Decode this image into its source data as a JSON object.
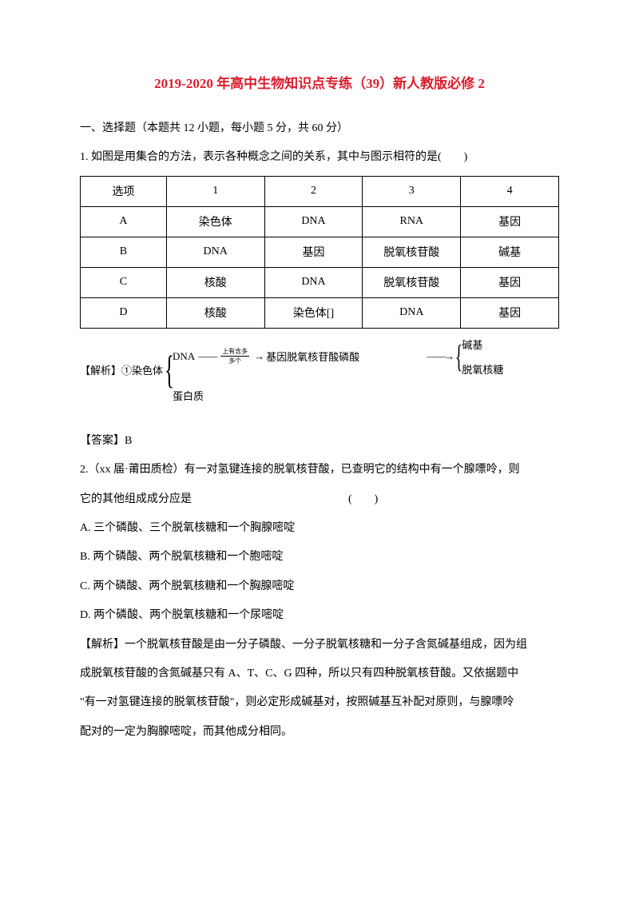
{
  "title": "2019-2020 年高中生物知识点专练（39）新人教版必修 2",
  "section_heading": "一、选择题（本题共 12 小题，每小题 5 分，共 60 分）",
  "q1": {
    "stem": "1. 如图是用集合的方法，表示各种概念之间的关系，其中与图示相符的是(　　)",
    "table": {
      "header": [
        "选项",
        "1",
        "2",
        "3",
        "4"
      ],
      "rows": [
        [
          "A",
          "染色体",
          "DNA",
          "RNA",
          "基因"
        ],
        [
          "B",
          "DNA",
          "基因",
          "脱氧核苷酸",
          "碱基"
        ],
        [
          "C",
          "核酸",
          "DNA",
          "脱氧核苷酸",
          "基因"
        ],
        [
          "D",
          "核酸",
          "染色体[]",
          "DNA",
          "基因"
        ]
      ]
    },
    "diagram": {
      "label": "【解析】①染色体",
      "top_left": "DNA",
      "frac_top": "上有含多",
      "frac_bottom": "多个",
      "mid": "基因脱氧核苷酸磷酸",
      "bottom_left": "蛋白质",
      "right_top": "碱基",
      "right_bottom": "脱氧核糖"
    },
    "answer": "【答案】B"
  },
  "q2": {
    "stem_line1": "2.（xx 届·莆田质检）有一对氢键连接的脱氧核苷酸，已查明它的结构中有一个腺嘌呤，则",
    "stem_line2": "它的其他组成成分应是　　　　　　　　　　　　　　(　　)",
    "optA": "A. 三个磷酸、三个脱氧核糖和一个胸腺嘧啶",
    "optB": "B. 两个磷酸、两个脱氧核糖和一个胞嘧啶",
    "optC": "C. 两个磷酸、两个脱氧核糖和一个胸腺嘧啶",
    "optD": "D. 两个磷酸、两个脱氧核糖和一个尿嘧啶",
    "explain1": "【解析】一个脱氧核苷酸是由一分子磷酸、一分子脱氧核糖和一分子含氮碱基组成，因为组",
    "explain2": "成脱氧核苷酸的含氮碱基只有 A、T、C、G 四种，所以只有四种脱氧核苷酸。又依据题中",
    "explain3": "\"有一对氢键连接的脱氧核苷酸\"，则必定形成碱基对，按照碱基互补配对原则，与腺嘌呤",
    "explain4": "配对的一定为胸腺嘧啶，而其他成分相同。"
  }
}
